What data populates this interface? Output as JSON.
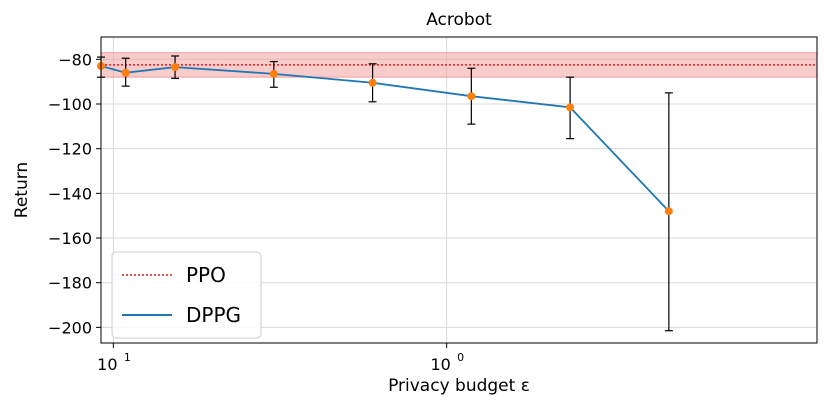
{
  "chart_data": {
    "type": "line",
    "title": "Acrobot",
    "xlabel": "Privacy budget ε",
    "ylabel": "Return",
    "x_scale": "reciprocal",
    "xlim": [
      15,
      0.5
    ],
    "ylim": [
      -207,
      -70
    ],
    "grid": true,
    "legend_position": "lower-left",
    "x_ticks": [
      {
        "value": 10,
        "label": "10",
        "sup": "1"
      },
      {
        "value": 1,
        "label": "10",
        "sup": "0"
      }
    ],
    "y_ticks": [
      -80,
      -100,
      -120,
      -140,
      -160,
      -180,
      -200
    ],
    "baseline": {
      "name": "PPO",
      "value": -82.5,
      "band": [
        -88,
        -77
      ],
      "color": "#e41a1c",
      "band_color": "#f4a3a3"
    },
    "series": [
      {
        "name": "DPPG",
        "color": "#1f77b4",
        "marker_color": "#ff7f0e",
        "x": [
          15,
          7.5,
          3.75,
          1.875,
          1.25,
          0.9375,
          0.75,
          0.625
        ],
        "y": [
          -83,
          -86,
          -83.5,
          -86.5,
          -90.5,
          -96.5,
          -101.5,
          -148
        ],
        "err_low": [
          -88,
          -92,
          -88.5,
          -92.5,
          -99,
          -109,
          -115.5,
          -201.5
        ],
        "err_high": [
          -79,
          -79.5,
          -78.5,
          -81,
          -82,
          -84,
          -88,
          -95
        ]
      }
    ]
  }
}
